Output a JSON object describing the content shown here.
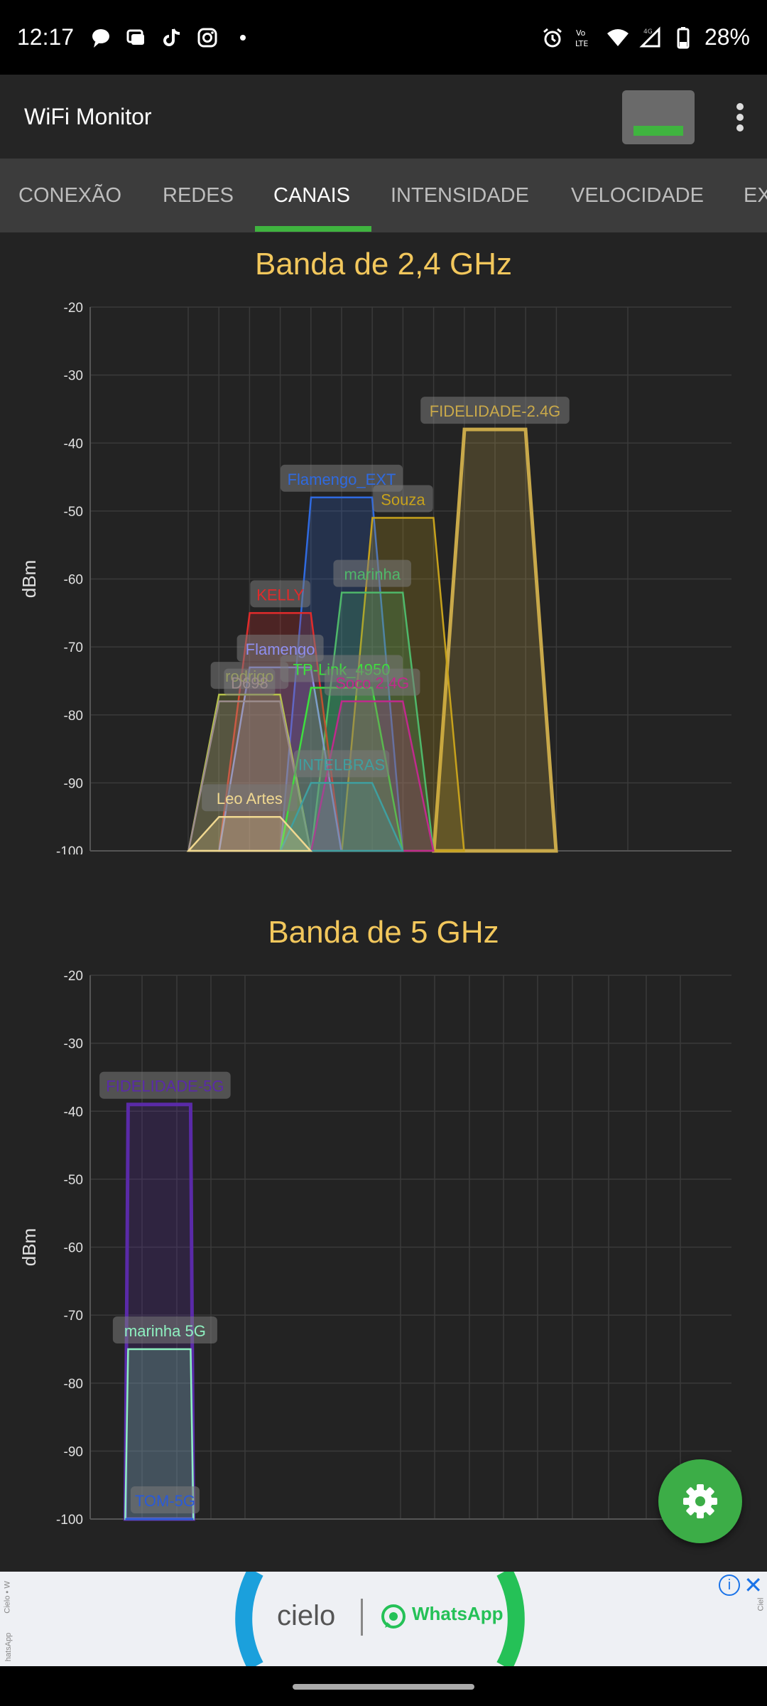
{
  "status_bar": {
    "time": "12:17",
    "left_icons": [
      "chat-bubble-icon",
      "messages-icon",
      "tiktok-icon",
      "instagram-icon",
      "dot-icon"
    ],
    "right_icons": [
      "alarm-icon",
      "volte-icon",
      "wifi-icon",
      "signal-4g-icon",
      "battery-icon"
    ],
    "battery": "28%"
  },
  "app_bar": {
    "title": "WiFi Monitor"
  },
  "tabs": [
    {
      "label": "CONEXÃO",
      "active": false
    },
    {
      "label": "REDES",
      "active": false
    },
    {
      "label": "CANAIS",
      "active": true
    },
    {
      "label": "INTENSIDADE",
      "active": false
    },
    {
      "label": "VELOCIDADE",
      "active": false
    },
    {
      "label": "EX",
      "active": false
    }
  ],
  "band24": {
    "title": "Banda de 2,4 GHz",
    "ylabel": "dBm"
  },
  "band5": {
    "title": "Banda de 5 GHz",
    "ylabel": "dBm"
  },
  "chart_data": [
    {
      "type": "area",
      "title": "Banda de 2,4 GHz",
      "ylabel": "dBm",
      "ylim": [
        -100,
        -20
      ],
      "yticks": [
        -20,
        -30,
        -40,
        -50,
        -60,
        -70,
        -80,
        -90,
        -100
      ],
      "x_ticks": [
        "1",
        "2",
        "3",
        "4",
        "5",
        "6",
        "7",
        "8",
        "9",
        "10",
        "11",
        "12",
        "13",
        "14"
      ],
      "series": [
        {
          "name": "FIDELIDADE-2.4G",
          "channel": 11,
          "dbm": -38,
          "color": "#c9a94a"
        },
        {
          "name": "Flamengo_EXT",
          "channel": 6,
          "dbm": -48,
          "color": "#2f6ae0"
        },
        {
          "name": "Souza",
          "channel": 8,
          "dbm": -51,
          "color": "#c7a21c"
        },
        {
          "name": "marinha",
          "channel": 7,
          "dbm": -62,
          "color": "#4fb86a"
        },
        {
          "name": "KELLY",
          "channel": 4,
          "dbm": -65,
          "color": "#e02b2b"
        },
        {
          "name": "Flamengo",
          "channel": 4,
          "dbm": -73,
          "color": "#8f8ff0"
        },
        {
          "name": "rodrigo",
          "channel": 3,
          "dbm": -77,
          "color": "#b5c24a"
        },
        {
          "name": "D698",
          "channel": 3,
          "dbm": -78,
          "color": "#9c8c8c"
        },
        {
          "name": "TP-Link_4950",
          "channel": 6,
          "dbm": -76,
          "color": "#3ee03e"
        },
        {
          "name": "Soco 2.4G",
          "channel": 7,
          "dbm": -78,
          "color": "#c02a8c"
        },
        {
          "name": "INTELBRAS",
          "channel": 6,
          "dbm": -90,
          "color": "#3f9f9f"
        },
        {
          "name": "Leo Artes",
          "channel": 3,
          "dbm": -95,
          "color": "#f0d890"
        }
      ]
    },
    {
      "type": "area",
      "title": "Banda de 5 GHz",
      "ylabel": "dBm",
      "ylim": [
        -100,
        -20
      ],
      "yticks": [
        -20,
        -30,
        -40,
        -50,
        -60,
        -70,
        -80,
        -90,
        -100
      ],
      "x_ticks": [
        "40",
        "48",
        "56",
        "64",
        "100",
        "108",
        "116",
        "124",
        "132",
        "140",
        "149",
        "157",
        "165"
      ],
      "series": [
        {
          "name": "FIDELIDADE-5G",
          "channel": 44,
          "dbm": -39,
          "color": "#5a2aa8"
        },
        {
          "name": "marinha 5G",
          "channel": 44,
          "dbm": -75,
          "color": "#8ef0c0"
        },
        {
          "name": "TOM-5G",
          "channel": 44,
          "dbm": -100,
          "color": "#2a5ad8"
        }
      ]
    }
  ],
  "fab": {
    "icon": "gear-icon"
  },
  "ad": {
    "brand": "cielo",
    "partner": "WhatsApp",
    "side_left_top": "Cielo • W",
    "side_left_bottom": "hatsApp",
    "side_right": "Ciel",
    "info_icon": "info-icon",
    "close_icon": "close-icon"
  }
}
